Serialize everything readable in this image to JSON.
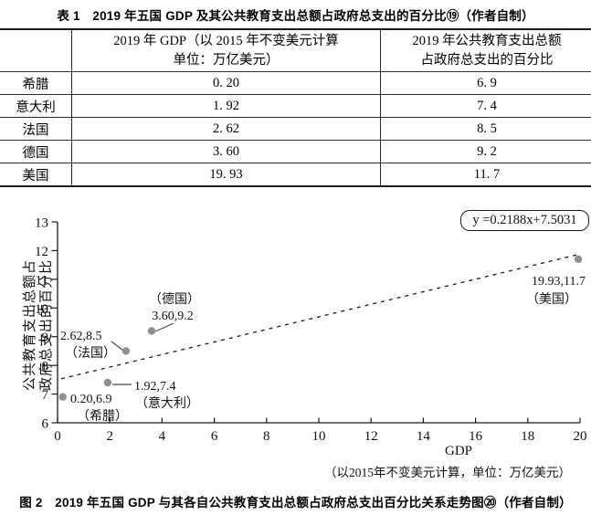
{
  "table": {
    "caption": "表 1　2019 年五国 GDP 及其公共教育支出总额占政府总支出的百分比⑲（作者自制）",
    "header": {
      "country": "",
      "gdp_line1": "2019 年 GDP（以 2015 年不变美元计算",
      "gdp_line2": "单位：万亿美元）",
      "pct_line1": "2019 年公共教育支出总额",
      "pct_line2": "占政府总支出的百分比"
    },
    "rows": [
      {
        "country": "希腊",
        "gdp": "0. 20",
        "pct": "6. 9"
      },
      {
        "country": "意大利",
        "gdp": "1. 92",
        "pct": "7. 4"
      },
      {
        "country": "法国",
        "gdp": "2. 62",
        "pct": "8. 5"
      },
      {
        "country": "德国",
        "gdp": "3. 60",
        "pct": "9. 2"
      },
      {
        "country": "美国",
        "gdp": "19. 93",
        "pct": "11. 7"
      }
    ]
  },
  "chart_data": {
    "type": "scatter",
    "points": [
      {
        "name": "greece",
        "label": "希腊",
        "x": 0.2,
        "y": 6.9,
        "annotation": "0.20,6.9",
        "country_label": "（希腊）"
      },
      {
        "name": "italy",
        "label": "意大利",
        "x": 1.92,
        "y": 7.4,
        "annotation": "1.92,7.4",
        "country_label": "（意大利）"
      },
      {
        "name": "france",
        "label": "法国",
        "x": 2.62,
        "y": 8.5,
        "annotation": "2.62,8.5",
        "country_label": "（法国）"
      },
      {
        "name": "germany",
        "label": "德国",
        "x": 3.6,
        "y": 9.2,
        "annotation": "3.60,9.2",
        "country_label": "（德国）"
      },
      {
        "name": "usa",
        "label": "美国",
        "x": 19.93,
        "y": 11.7,
        "annotation": "19.93,11.7",
        "country_label": "（美国）"
      }
    ],
    "trendline": {
      "equation": "y =0.2188x+7.5031",
      "slope": 0.2188,
      "intercept": 7.5031,
      "x_range": [
        0.14,
        20
      ],
      "style": "dashed"
    },
    "xlabel": "GDP",
    "xlabel_sub": "（以2015年不变美元计算，单位：万亿美元）",
    "ylabel_line1": "公共教育支出总额占",
    "ylabel_line2": "政府总支出的百分比",
    "xlim": [
      0,
      20
    ],
    "ylim": [
      6,
      13
    ],
    "x_ticks": [
      0,
      2,
      4,
      6,
      8,
      10,
      12,
      14,
      16,
      18,
      20
    ],
    "y_ticks": [
      6,
      7,
      8,
      9,
      10,
      11,
      12,
      13
    ],
    "grid": "off",
    "legend": "none"
  },
  "figure": {
    "caption": "图 2　2019 年五国 GDP 与其各自公共教育支出总额占政府总支出百分比关系走势图⑳（作者自制）"
  },
  "colors": {
    "point": "#8f8f8f",
    "axis": "#1a1a1a",
    "text": "#000000",
    "background": "#ffffff"
  }
}
